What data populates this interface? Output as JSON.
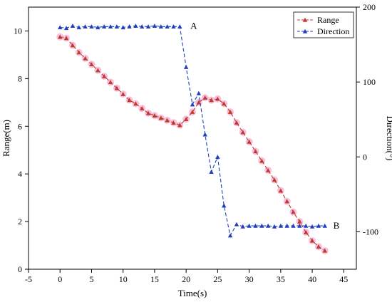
{
  "chart_data": {
    "type": "line",
    "xlabel": "Time(s)",
    "ylabel_left": "Range(m)",
    "ylabel_right": "Direction(°)",
    "xlim": [
      -5,
      47
    ],
    "ylim_left": [
      0,
      11
    ],
    "ylim_right": [
      -150,
      200
    ],
    "x_ticks": [
      -5,
      0,
      5,
      10,
      15,
      20,
      25,
      30,
      35,
      40,
      45
    ],
    "y_left_ticks": [
      0,
      2,
      4,
      6,
      8,
      10
    ],
    "y_right_ticks": [
      -100,
      0,
      100,
      200
    ],
    "legend_position": "top-right",
    "grid": false,
    "annotations": [
      {
        "label": "A",
        "x": 20,
        "axis": "right",
        "y": 175
      },
      {
        "label": "B",
        "x": 43,
        "axis": "right",
        "y": -92
      }
    ],
    "series": [
      {
        "name": "Range",
        "axis": "left",
        "color": "#c0392b",
        "halo": "#f4b6d8",
        "marker": "triangle",
        "x": [
          0,
          1,
          2,
          3,
          4,
          5,
          6,
          7,
          8,
          9,
          10,
          11,
          12,
          13,
          14,
          15,
          16,
          17,
          18,
          19,
          20,
          21,
          22,
          23,
          24,
          25,
          26,
          27,
          28,
          29,
          30,
          31,
          32,
          33,
          34,
          35,
          36,
          37,
          38,
          39,
          40,
          41,
          42
        ],
        "values": [
          9.75,
          9.7,
          9.4,
          9.1,
          8.85,
          8.6,
          8.35,
          8.1,
          7.85,
          7.6,
          7.35,
          7.1,
          6.95,
          6.75,
          6.55,
          6.45,
          6.35,
          6.25,
          6.15,
          6.05,
          6.3,
          6.6,
          7.0,
          7.2,
          7.1,
          7.15,
          6.95,
          6.6,
          6.15,
          5.75,
          5.35,
          4.95,
          4.55,
          4.15,
          3.75,
          3.3,
          2.85,
          2.4,
          2.0,
          1.55,
          1.2,
          0.95,
          0.78
        ]
      },
      {
        "name": "Direction",
        "axis": "right",
        "color": "#1f3fbf",
        "marker": "triangle",
        "x": [
          0,
          1,
          2,
          3,
          4,
          5,
          6,
          7,
          8,
          9,
          10,
          11,
          12,
          13,
          14,
          15,
          16,
          17,
          18,
          19,
          20,
          21,
          22,
          23,
          24,
          25,
          26,
          27,
          28,
          29,
          30,
          31,
          32,
          33,
          34,
          35,
          36,
          37,
          38,
          39,
          40,
          41,
          42
        ],
        "values": [
          173,
          172,
          175,
          173,
          174,
          174,
          173,
          174,
          174,
          174,
          173,
          174,
          175,
          174,
          174,
          175,
          174,
          174,
          174,
          174,
          120,
          70,
          85,
          30,
          -20,
          0,
          -65,
          -105,
          -90,
          -93,
          -92,
          -92,
          -92,
          -92,
          -93,
          -92,
          -92,
          -92,
          -92,
          -92,
          -93,
          -92,
          -92
        ]
      }
    ]
  }
}
